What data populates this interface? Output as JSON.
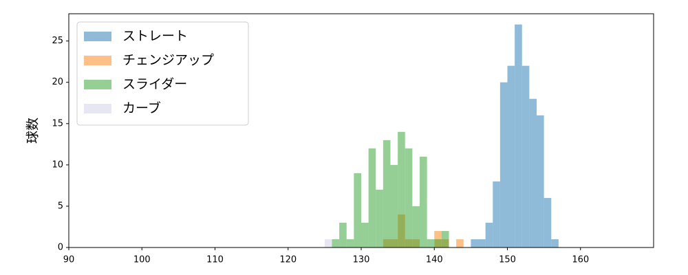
{
  "chart_data": {
    "type": "histogram",
    "y_label": "球数",
    "xlim": [
      90,
      170
    ],
    "ylim": [
      0,
      28.3
    ],
    "xticks": [
      90,
      100,
      110,
      120,
      130,
      140,
      150,
      160
    ],
    "yticks": [
      0,
      5,
      10,
      15,
      20,
      25
    ],
    "alpha": 0.5,
    "legend": "upper left",
    "series": [
      {
        "name": "ストレート",
        "color": "#1f77b4",
        "bins": [
          145,
          146,
          147,
          148,
          149,
          150,
          151,
          152,
          153,
          154,
          155,
          156,
          157
        ],
        "values": [
          1,
          1,
          3,
          8,
          20,
          22,
          27,
          22,
          18,
          16,
          6,
          1
        ]
      },
      {
        "name": "チェンジアップ",
        "color": "#ff7f0e",
        "bins": [
          133,
          134,
          135,
          136,
          137,
          138,
          139,
          140,
          141,
          142,
          143,
          144
        ],
        "values": [
          1,
          1,
          4,
          1,
          1,
          0,
          0,
          2,
          1,
          0,
          1
        ]
      },
      {
        "name": "スライダー",
        "color": "#2ca02c",
        "bins": [
          126,
          127,
          128,
          129,
          130,
          131,
          132,
          133,
          134,
          135,
          136,
          137,
          138,
          139,
          140,
          141,
          142
        ],
        "values": [
          1,
          3,
          1,
          9,
          3,
          12,
          7,
          13,
          10,
          14,
          12,
          5,
          11,
          1,
          1,
          2
        ]
      },
      {
        "name": "カーブ",
        "color": "#d0d0e8",
        "bins": [
          125,
          126
        ],
        "values": [
          1
        ]
      }
    ]
  }
}
